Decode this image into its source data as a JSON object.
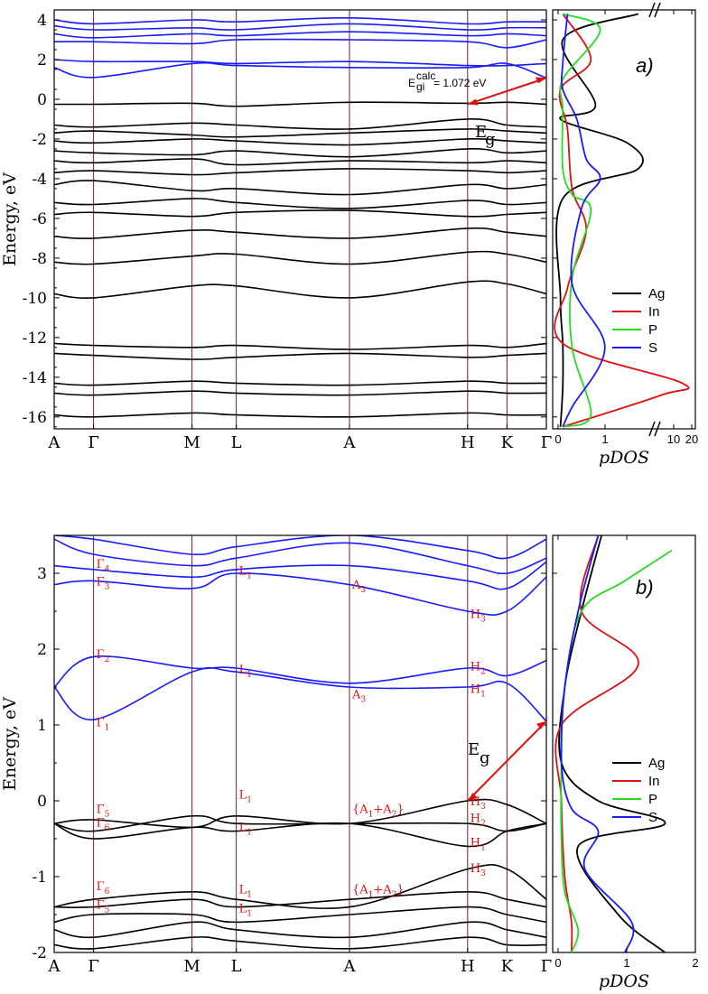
{
  "colors": {
    "valence": "#000000",
    "conduction": "#1a1aff",
    "kline": "#7a1f1f",
    "arrow": "#e01010",
    "Ag": "#000000",
    "In": "#e01010",
    "P": "#22dd22",
    "S": "#1a1aff"
  },
  "hs_points": [
    "A",
    "Γ",
    "M",
    "L",
    "A",
    "H",
    "K",
    "Γ"
  ],
  "hs_positions": [
    0,
    0.08,
    0.28,
    0.37,
    0.6,
    0.84,
    0.92,
    1.0
  ],
  "panel_a": {
    "tag": "a)",
    "ylabel": "Energy, eV",
    "ylim": [
      -16.6,
      4.5
    ],
    "yticks": [
      "4",
      "2",
      "0",
      "-2",
      "-4",
      "-6",
      "-8",
      "-10",
      "-12",
      "-14",
      "-16"
    ],
    "ytick_values": [
      4,
      2,
      0,
      -2,
      -4,
      -6,
      -8,
      -10,
      -12,
      -14,
      -16
    ],
    "gap_text": "E",
    "gap_sup": "calc",
    "gap_sub": "gi",
    "gap_value": "= 1.072 eV",
    "eg_label": "E",
    "eg_sub": "g",
    "pdos_xlabel": "pDOS",
    "pdos_ticks": [
      "0",
      "1",
      "10",
      "20"
    ],
    "legend": [
      "Ag",
      "In",
      "P",
      "S"
    ]
  },
  "panel_b": {
    "tag": "b)",
    "ylabel": "Energy, eV",
    "ylim": [
      -2,
      3.5
    ],
    "yticks": [
      "3",
      "2",
      "1",
      "0",
      "-1",
      "-2"
    ],
    "ytick_values": [
      3,
      2,
      1,
      0,
      -1,
      -2
    ],
    "eg_label": "E",
    "eg_sub": "g",
    "pdos_xlabel": "pDOS",
    "pdos_ticks": [
      "0",
      "1",
      "2"
    ],
    "legend": [
      "Ag",
      "In",
      "P",
      "S"
    ]
  },
  "annotations_b": [
    {
      "t": "Γ",
      "s": "4",
      "k": 0.08,
      "e": 3.07
    },
    {
      "t": "Γ",
      "s": "3",
      "k": 0.08,
      "e": 2.84
    },
    {
      "t": "L",
      "s": "1",
      "k": 0.37,
      "e": 2.98
    },
    {
      "t": "A",
      "s": "3",
      "k": 0.6,
      "e": 2.8
    },
    {
      "t": "H",
      "s": "3",
      "k": 0.84,
      "e": 2.41
    },
    {
      "t": "Γ",
      "s": "2",
      "k": 0.08,
      "e": 1.88
    },
    {
      "t": "L",
      "s": "1",
      "k": 0.37,
      "e": 1.68
    },
    {
      "t": "H",
      "s": "2",
      "k": 0.84,
      "e": 1.72
    },
    {
      "t": "A",
      "s": "3",
      "k": 0.6,
      "e": 1.35
    },
    {
      "t": "H",
      "s": "1",
      "k": 0.84,
      "e": 1.42
    },
    {
      "t": "Γ",
      "s": "1",
      "k": 0.08,
      "e": 0.98
    },
    {
      "t": "L",
      "s": "1",
      "k": 0.37,
      "e": 0.03
    },
    {
      "t": "H",
      "s": "3",
      "k": 0.84,
      "e": -0.06
    },
    {
      "t": "Γ",
      "s": "5",
      "k": 0.08,
      "e": -0.16
    },
    {
      "t": "{A",
      "s": "1",
      "k": 0.6,
      "e": -0.16,
      "rest": "+A",
      "s2": "2",
      "end": "}"
    },
    {
      "t": "H",
      "s": "2",
      "k": 0.84,
      "e": -0.28
    },
    {
      "t": "Γ",
      "s": "6",
      "k": 0.08,
      "e": -0.34
    },
    {
      "t": "L",
      "s": "1",
      "k": 0.37,
      "e": -0.4
    },
    {
      "t": "H",
      "s": "1",
      "k": 0.84,
      "e": -0.6
    },
    {
      "t": "H",
      "s": "3",
      "k": 0.84,
      "e": -0.94
    },
    {
      "t": "Γ",
      "s": "6",
      "k": 0.08,
      "e": -1.18
    },
    {
      "t": "L",
      "s": "1",
      "k": 0.37,
      "e": -1.22
    },
    {
      "t": "{A",
      "s": "1",
      "k": 0.6,
      "e": -1.22,
      "rest": "+A",
      "s2": "2",
      "end": "}"
    },
    {
      "t": "Γ",
      "s": "5",
      "k": 0.08,
      "e": -1.42
    },
    {
      "t": "L",
      "s": "1",
      "k": 0.37,
      "e": -1.47
    }
  ],
  "chart_data": [
    {
      "type": "line",
      "title": "",
      "xlabel": "",
      "ylabel": "Energy, eV",
      "ylim": [
        -16.6,
        4.5
      ],
      "x_ticks": [
        "A",
        "Γ",
        "M",
        "L",
        "A",
        "H",
        "K",
        "Γ"
      ],
      "band_gap_eV": 1.072,
      "bands_valence": [
        {
          "name": "",
          "values": [
            -0.25,
            -0.25,
            -0.2,
            -0.35,
            -0.15,
            -0.2,
            -0.15,
            -0.25
          ]
        },
        {
          "name": "",
          "values": [
            -1.3,
            -1.4,
            -1.2,
            -1.3,
            -1.5,
            -1.0,
            -1.3,
            -1.4
          ]
        },
        {
          "name": "",
          "values": [
            -1.7,
            -1.6,
            -1.8,
            -1.9,
            -1.7,
            -1.5,
            -1.6,
            -1.7
          ]
        },
        {
          "name": "",
          "values": [
            -2.1,
            -2.2,
            -2.0,
            -2.1,
            -2.3,
            -2.0,
            -2.1,
            -2.2
          ]
        },
        {
          "name": "",
          "values": [
            -2.6,
            -2.7,
            -2.8,
            -2.6,
            -2.9,
            -2.5,
            -2.7,
            -2.6
          ]
        },
        {
          "name": "",
          "values": [
            -3.1,
            -3.2,
            -3.0,
            -3.3,
            -3.1,
            -3.2,
            -3.1,
            -3.2
          ]
        },
        {
          "name": "",
          "values": [
            -3.7,
            -3.6,
            -3.8,
            -3.7,
            -3.5,
            -3.6,
            -3.7,
            -3.6
          ]
        },
        {
          "name": "",
          "values": [
            -4.3,
            -4.1,
            -4.6,
            -4.5,
            -4.8,
            -4.3,
            -4.5,
            -4.3
          ]
        },
        {
          "name": "",
          "values": [
            -5.2,
            -5.3,
            -5.0,
            -5.2,
            -5.5,
            -5.1,
            -5.3,
            -5.2
          ]
        },
        {
          "name": "",
          "values": [
            -5.8,
            -5.7,
            -5.9,
            -5.7,
            -5.6,
            -5.9,
            -5.8,
            -5.7
          ]
        },
        {
          "name": "",
          "values": [
            -6.9,
            -7.0,
            -6.6,
            -6.7,
            -7.0,
            -6.5,
            -6.7,
            -6.9
          ]
        },
        {
          "name": "",
          "values": [
            -8.2,
            -8.3,
            -7.9,
            -7.8,
            -8.3,
            -7.7,
            -7.8,
            -8.2
          ]
        },
        {
          "name": "",
          "values": [
            -9.8,
            -10.0,
            -9.4,
            -9.4,
            -10.0,
            -9.2,
            -9.3,
            -9.8
          ]
        },
        {
          "name": "",
          "values": [
            -12.3,
            -12.4,
            -12.5,
            -12.4,
            -12.6,
            -12.4,
            -12.5,
            -12.3
          ]
        },
        {
          "name": "",
          "values": [
            -12.8,
            -12.9,
            -13.1,
            -13.0,
            -12.8,
            -13.0,
            -12.9,
            -12.8
          ]
        },
        {
          "name": "",
          "values": [
            -14.3,
            -14.4,
            -14.2,
            -14.3,
            -14.4,
            -14.2,
            -14.3,
            -14.3
          ]
        },
        {
          "name": "",
          "values": [
            -14.8,
            -14.9,
            -14.7,
            -14.8,
            -14.9,
            -14.7,
            -14.8,
            -14.8
          ]
        },
        {
          "name": "",
          "values": [
            -15.9,
            -16.0,
            -15.8,
            -15.9,
            -16.0,
            -15.8,
            -15.9,
            -15.9
          ]
        }
      ],
      "bands_conduction": [
        {
          "name": "",
          "values": [
            1.6,
            1.1,
            1.8,
            1.7,
            1.6,
            1.6,
            1.8,
            1.07
          ]
        },
        {
          "name": "",
          "values": [
            2.0,
            1.9,
            1.9,
            1.8,
            1.9,
            1.7,
            1.7,
            1.8
          ]
        },
        {
          "name": "",
          "values": [
            2.9,
            2.9,
            2.8,
            3.0,
            3.0,
            2.9,
            2.6,
            3.0
          ]
        },
        {
          "name": "",
          "values": [
            3.3,
            3.1,
            3.3,
            3.2,
            3.4,
            3.2,
            3.3,
            3.2
          ]
        },
        {
          "name": "",
          "values": [
            3.7,
            3.5,
            3.6,
            3.5,
            3.8,
            3.5,
            3.6,
            3.6
          ]
        },
        {
          "name": "",
          "values": [
            4.0,
            3.8,
            4.0,
            3.9,
            4.1,
            3.8,
            3.9,
            3.9
          ]
        }
      ],
      "pdos": {
        "xticks": [
          0,
          1,
          10,
          20
        ],
        "series": [
          {
            "name": "Ag",
            "points": [
              [
                4.0,
                4.3
              ],
              [
                0.1,
                3.0
              ],
              [
                0.8,
                -0.3
              ],
              [
                0.05,
                -1.0
              ],
              [
                3.0,
                -2.2
              ],
              [
                4.0,
                -3.5
              ],
              [
                0.1,
                -5.0
              ],
              [
                0.05,
                -10
              ],
              [
                0.1,
                -12.3
              ],
              [
                0.1,
                -14.5
              ],
              [
                0.05,
                -16.5
              ]
            ]
          },
          {
            "name": "In",
            "points": [
              [
                0.1,
                4.3
              ],
              [
                0.7,
                2.0
              ],
              [
                0.05,
                0.5
              ],
              [
                0.2,
                -1.5
              ],
              [
                0.3,
                -4.5
              ],
              [
                0.6,
                -6.6
              ],
              [
                0.2,
                -9.5
              ],
              [
                0.1,
                -12.3
              ],
              [
                15,
                -14.3
              ],
              [
                8,
                -14.9
              ],
              [
                0.1,
                -16.5
              ]
            ]
          },
          {
            "name": "P",
            "points": [
              [
                0.1,
                4.3
              ],
              [
                0.9,
                3.5
              ],
              [
                0.1,
                1.0
              ],
              [
                0.1,
                -0.5
              ],
              [
                0.1,
                -3.5
              ],
              [
                0.3,
                -4.8
              ],
              [
                0.7,
                -5.6
              ],
              [
                0.3,
                -9.0
              ],
              [
                0.3,
                -12.5
              ],
              [
                0.7,
                -15.9
              ],
              [
                0.1,
                -16.5
              ]
            ]
          },
          {
            "name": "S",
            "points": [
              [
                0.2,
                4.3
              ],
              [
                0.1,
                1.8
              ],
              [
                0.1,
                0.5
              ],
              [
                0.4,
                -1.0
              ],
              [
                0.6,
                -3.0
              ],
              [
                0.9,
                -4.0
              ],
              [
                0.5,
                -5.5
              ],
              [
                0.3,
                -9.3
              ],
              [
                1.0,
                -12.5
              ],
              [
                0.3,
                -15.5
              ],
              [
                0.1,
                -16.5
              ]
            ]
          }
        ]
      },
      "legend": [
        "Ag",
        "In",
        "P",
        "S"
      ],
      "legend_position": "right"
    },
    {
      "type": "line",
      "title": "",
      "xlabel": "",
      "ylabel": "Energy, eV",
      "ylim": [
        -2,
        3.5
      ],
      "x_ticks": [
        "A",
        "Γ",
        "M",
        "L",
        "A",
        "H",
        "K",
        "Γ"
      ],
      "bands_valence": [
        {
          "name": "",
          "values": [
            -0.3,
            -0.25,
            -0.35,
            -0.2,
            -0.3,
            0.0,
            -0.05,
            -0.3
          ]
        },
        {
          "name": "",
          "values": [
            -0.3,
            -0.4,
            -0.2,
            -0.3,
            -0.3,
            -0.3,
            -0.4,
            -0.3
          ]
        },
        {
          "name": "",
          "values": [
            -0.3,
            -0.5,
            -0.35,
            -0.4,
            -0.3,
            -0.6,
            -0.4,
            -0.3
          ]
        },
        {
          "name": "",
          "values": [
            -1.4,
            -1.3,
            -1.2,
            -1.3,
            -1.4,
            -0.9,
            -0.9,
            -1.3
          ]
        },
        {
          "name": "",
          "values": [
            -1.4,
            -1.4,
            -1.3,
            -1.4,
            -1.3,
            -1.2,
            -1.3,
            -1.4
          ]
        },
        {
          "name": "",
          "values": [
            -1.6,
            -1.5,
            -1.5,
            -1.6,
            -1.5,
            -1.4,
            -1.5,
            -1.6
          ]
        },
        {
          "name": "",
          "values": [
            -1.7,
            -1.8,
            -1.6,
            -1.7,
            -1.8,
            -1.6,
            -1.7,
            -1.8
          ]
        },
        {
          "name": "",
          "values": [
            -1.9,
            -1.95,
            -1.8,
            -1.85,
            -1.95,
            -1.8,
            -1.9,
            -1.9
          ]
        }
      ],
      "bands_conduction": [
        {
          "name": "",
          "values": [
            1.5,
            1.07,
            1.7,
            1.7,
            1.5,
            1.5,
            1.55,
            1.05
          ]
        },
        {
          "name": "",
          "values": [
            1.5,
            1.9,
            1.75,
            1.75,
            1.55,
            1.75,
            1.65,
            1.85
          ]
        },
        {
          "name": "",
          "values": [
            2.85,
            2.9,
            2.8,
            3.0,
            2.85,
            2.5,
            2.5,
            2.95
          ]
        },
        {
          "name": "",
          "values": [
            3.1,
            3.05,
            2.95,
            3.05,
            3.1,
            2.9,
            2.8,
            3.15
          ]
        },
        {
          "name": "",
          "values": [
            3.45,
            3.25,
            3.1,
            3.2,
            3.4,
            3.1,
            3.0,
            3.2
          ]
        },
        {
          "name": "",
          "values": [
            3.5,
            3.45,
            3.25,
            3.35,
            3.5,
            3.3,
            3.2,
            3.45
          ]
        }
      ],
      "pdos": {
        "xticks": [
          0,
          1,
          2
        ],
        "series": [
          {
            "name": "Ag",
            "points": [
              [
                0.65,
                3.5
              ],
              [
                0.35,
                2.5
              ],
              [
                0.1,
                1.5
              ],
              [
                0.05,
                0.5
              ],
              [
                0.6,
                0.0
              ],
              [
                1.6,
                -0.3
              ],
              [
                0.3,
                -0.6
              ],
              [
                0.9,
                -1.5
              ],
              [
                1.6,
                -2.0
              ]
            ]
          },
          {
            "name": "In",
            "points": [
              [
                0.6,
                3.5
              ],
              [
                0.35,
                2.5
              ],
              [
                1.2,
                1.8
              ],
              [
                0.05,
                1.0
              ],
              [
                0.05,
                0.0
              ],
              [
                0.1,
                -1.0
              ],
              [
                0.2,
                -1.6
              ],
              [
                0.2,
                -2.0
              ]
            ]
          },
          {
            "name": "P",
            "points": [
              [
                1.7,
                3.3
              ],
              [
                1.0,
                2.9
              ],
              [
                0.35,
                2.5
              ],
              [
                0.1,
                1.5
              ],
              [
                0.05,
                0.5
              ],
              [
                0.05,
                -0.5
              ],
              [
                0.1,
                -1.2
              ],
              [
                0.3,
                -1.7
              ],
              [
                0.2,
                -2.0
              ]
            ]
          },
          {
            "name": "S",
            "points": [
              [
                0.6,
                3.5
              ],
              [
                0.3,
                2.5
              ],
              [
                0.1,
                1.5
              ],
              [
                0.05,
                0.5
              ],
              [
                0.2,
                -0.1
              ],
              [
                0.6,
                -0.4
              ],
              [
                0.4,
                -0.9
              ],
              [
                1.1,
                -1.6
              ],
              [
                1.0,
                -2.0
              ]
            ]
          }
        ]
      },
      "legend": [
        "Ag",
        "In",
        "P",
        "S"
      ],
      "legend_position": "right"
    }
  ]
}
